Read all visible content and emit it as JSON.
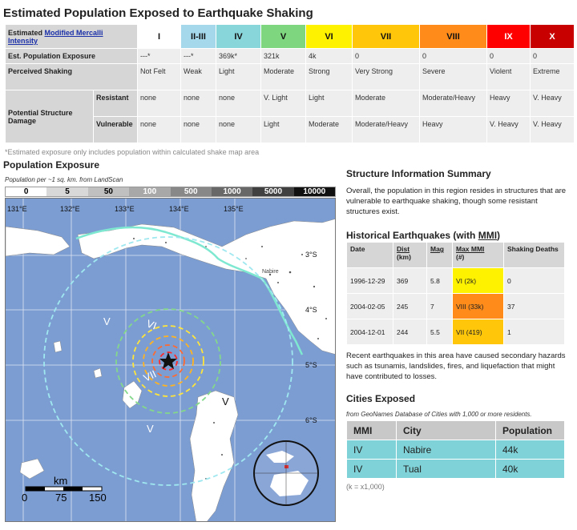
{
  "title": "Estimated Population Exposed to Earthquake Shaking",
  "mmi_table": {
    "header_label_prefix": "Estimated ",
    "header_label_link": "Modified Mercalli Intensity",
    "levels": [
      "I",
      "II-III",
      "IV",
      "V",
      "VI",
      "VII",
      "VIII",
      "IX",
      "X"
    ],
    "level_colors": [
      "#ffffff",
      "#a6d8ec",
      "#89d6da",
      "#7ed67e",
      "#fff200",
      "#ffc60a",
      "#ff8c1a",
      "#ff0000",
      "#c80000"
    ],
    "exposure_label": "Est. Population Exposure",
    "exposure": [
      "---*",
      "---*",
      "369k*",
      "321k",
      "4k",
      "0",
      "0",
      "0",
      "0"
    ],
    "shaking_label": "Perceived Shaking",
    "shaking": [
      "Not Felt",
      "Weak",
      "Light",
      "Moderate",
      "Strong",
      "Very Strong",
      "Severe",
      "Violent",
      "Extreme"
    ],
    "damage_label": "Potential Structure Damage",
    "resistant_label": "Resistant",
    "resistant": [
      "none",
      "none",
      "none",
      "V. Light",
      "Light",
      "Moderate",
      "Moderate/Heavy",
      "Heavy",
      "V. Heavy"
    ],
    "vulnerable_label": "Vulnerable",
    "vulnerable": [
      "none",
      "none",
      "none",
      "Light",
      "Moderate",
      "Moderate/Heavy",
      "Heavy",
      "V. Heavy",
      "V. Heavy"
    ]
  },
  "note": "*Estimated exposure only includes population within calculated shake map area",
  "population": {
    "title": "Population Exposure",
    "subtitle": "Population per ~1 sq. km. from LandScan",
    "legend": [
      "0",
      "5",
      "50",
      "100",
      "500",
      "1000",
      "5000",
      "10000"
    ],
    "legend_colors": [
      "#ffffff",
      "#d8d8d8",
      "#c0c0c0",
      "#a8a8a8",
      "#888888",
      "#686868",
      "#404040",
      "#101010"
    ],
    "legend_text_colors": [
      "#000000",
      "#000000",
      "#000000",
      "#ffffff",
      "#ffffff",
      "#ffffff",
      "#ffffff",
      "#ffffff"
    ]
  },
  "map": {
    "lon_labels": [
      "131°E",
      "132°E",
      "133°E",
      "134°E",
      "135°E"
    ],
    "lat_labels": [
      "3°S",
      "4°S",
      "5°S",
      "6°S"
    ],
    "place_label": "Nabire",
    "contour_labels": [
      "V",
      "VI",
      "VII",
      "V",
      "V"
    ],
    "scale_unit": "km",
    "scale_ticks": [
      "0",
      "75",
      "150"
    ]
  },
  "structure": {
    "title": "Structure Information Summary",
    "text": "Overall, the population in this region resides in structures that are vulnerable to earthquake shaking, though some resistant structures exist."
  },
  "historical": {
    "title_prefix": "Historical Earthquakes (with ",
    "title_mmi": "MMI",
    "title_suffix": ")",
    "headers": {
      "date": "Date",
      "dist": "Dist",
      "dist_unit": "(km)",
      "mag": "Mag",
      "maxmmi": "Max MMI",
      "maxmmi_unit": "(#)",
      "deaths": "Shaking Deaths"
    },
    "rows": [
      {
        "date": "1996-12-29",
        "dist": "369",
        "mag": "5.8",
        "mmi": "VI (2k)",
        "deaths": "0",
        "color": "#fff200"
      },
      {
        "date": "2004-02-05",
        "dist": "245",
        "mag": "7",
        "mmi": "VIII (33k)",
        "deaths": "37",
        "color": "#ff8c1a"
      },
      {
        "date": "2004-12-01",
        "dist": "244",
        "mag": "5.5",
        "mmi": "VII (419)",
        "deaths": "1",
        "color": "#ffc60a"
      }
    ],
    "text": "Recent earthquakes in this area have caused secondary hazards such as tsunamis, landslides, fires, and liquefaction that might have contributed to losses."
  },
  "cities": {
    "title": "Cities Exposed",
    "subtitle": "from GeoNames Database of Cities with 1,000 or more residents.",
    "headers": [
      "MMI",
      "City",
      "Population"
    ],
    "rows": [
      {
        "mmi": "IV",
        "city": "Nabire",
        "pop": "44k"
      },
      {
        "mmi": "IV",
        "city": "Tual",
        "pop": "40k"
      }
    ],
    "note": "(k = x1,000)"
  }
}
